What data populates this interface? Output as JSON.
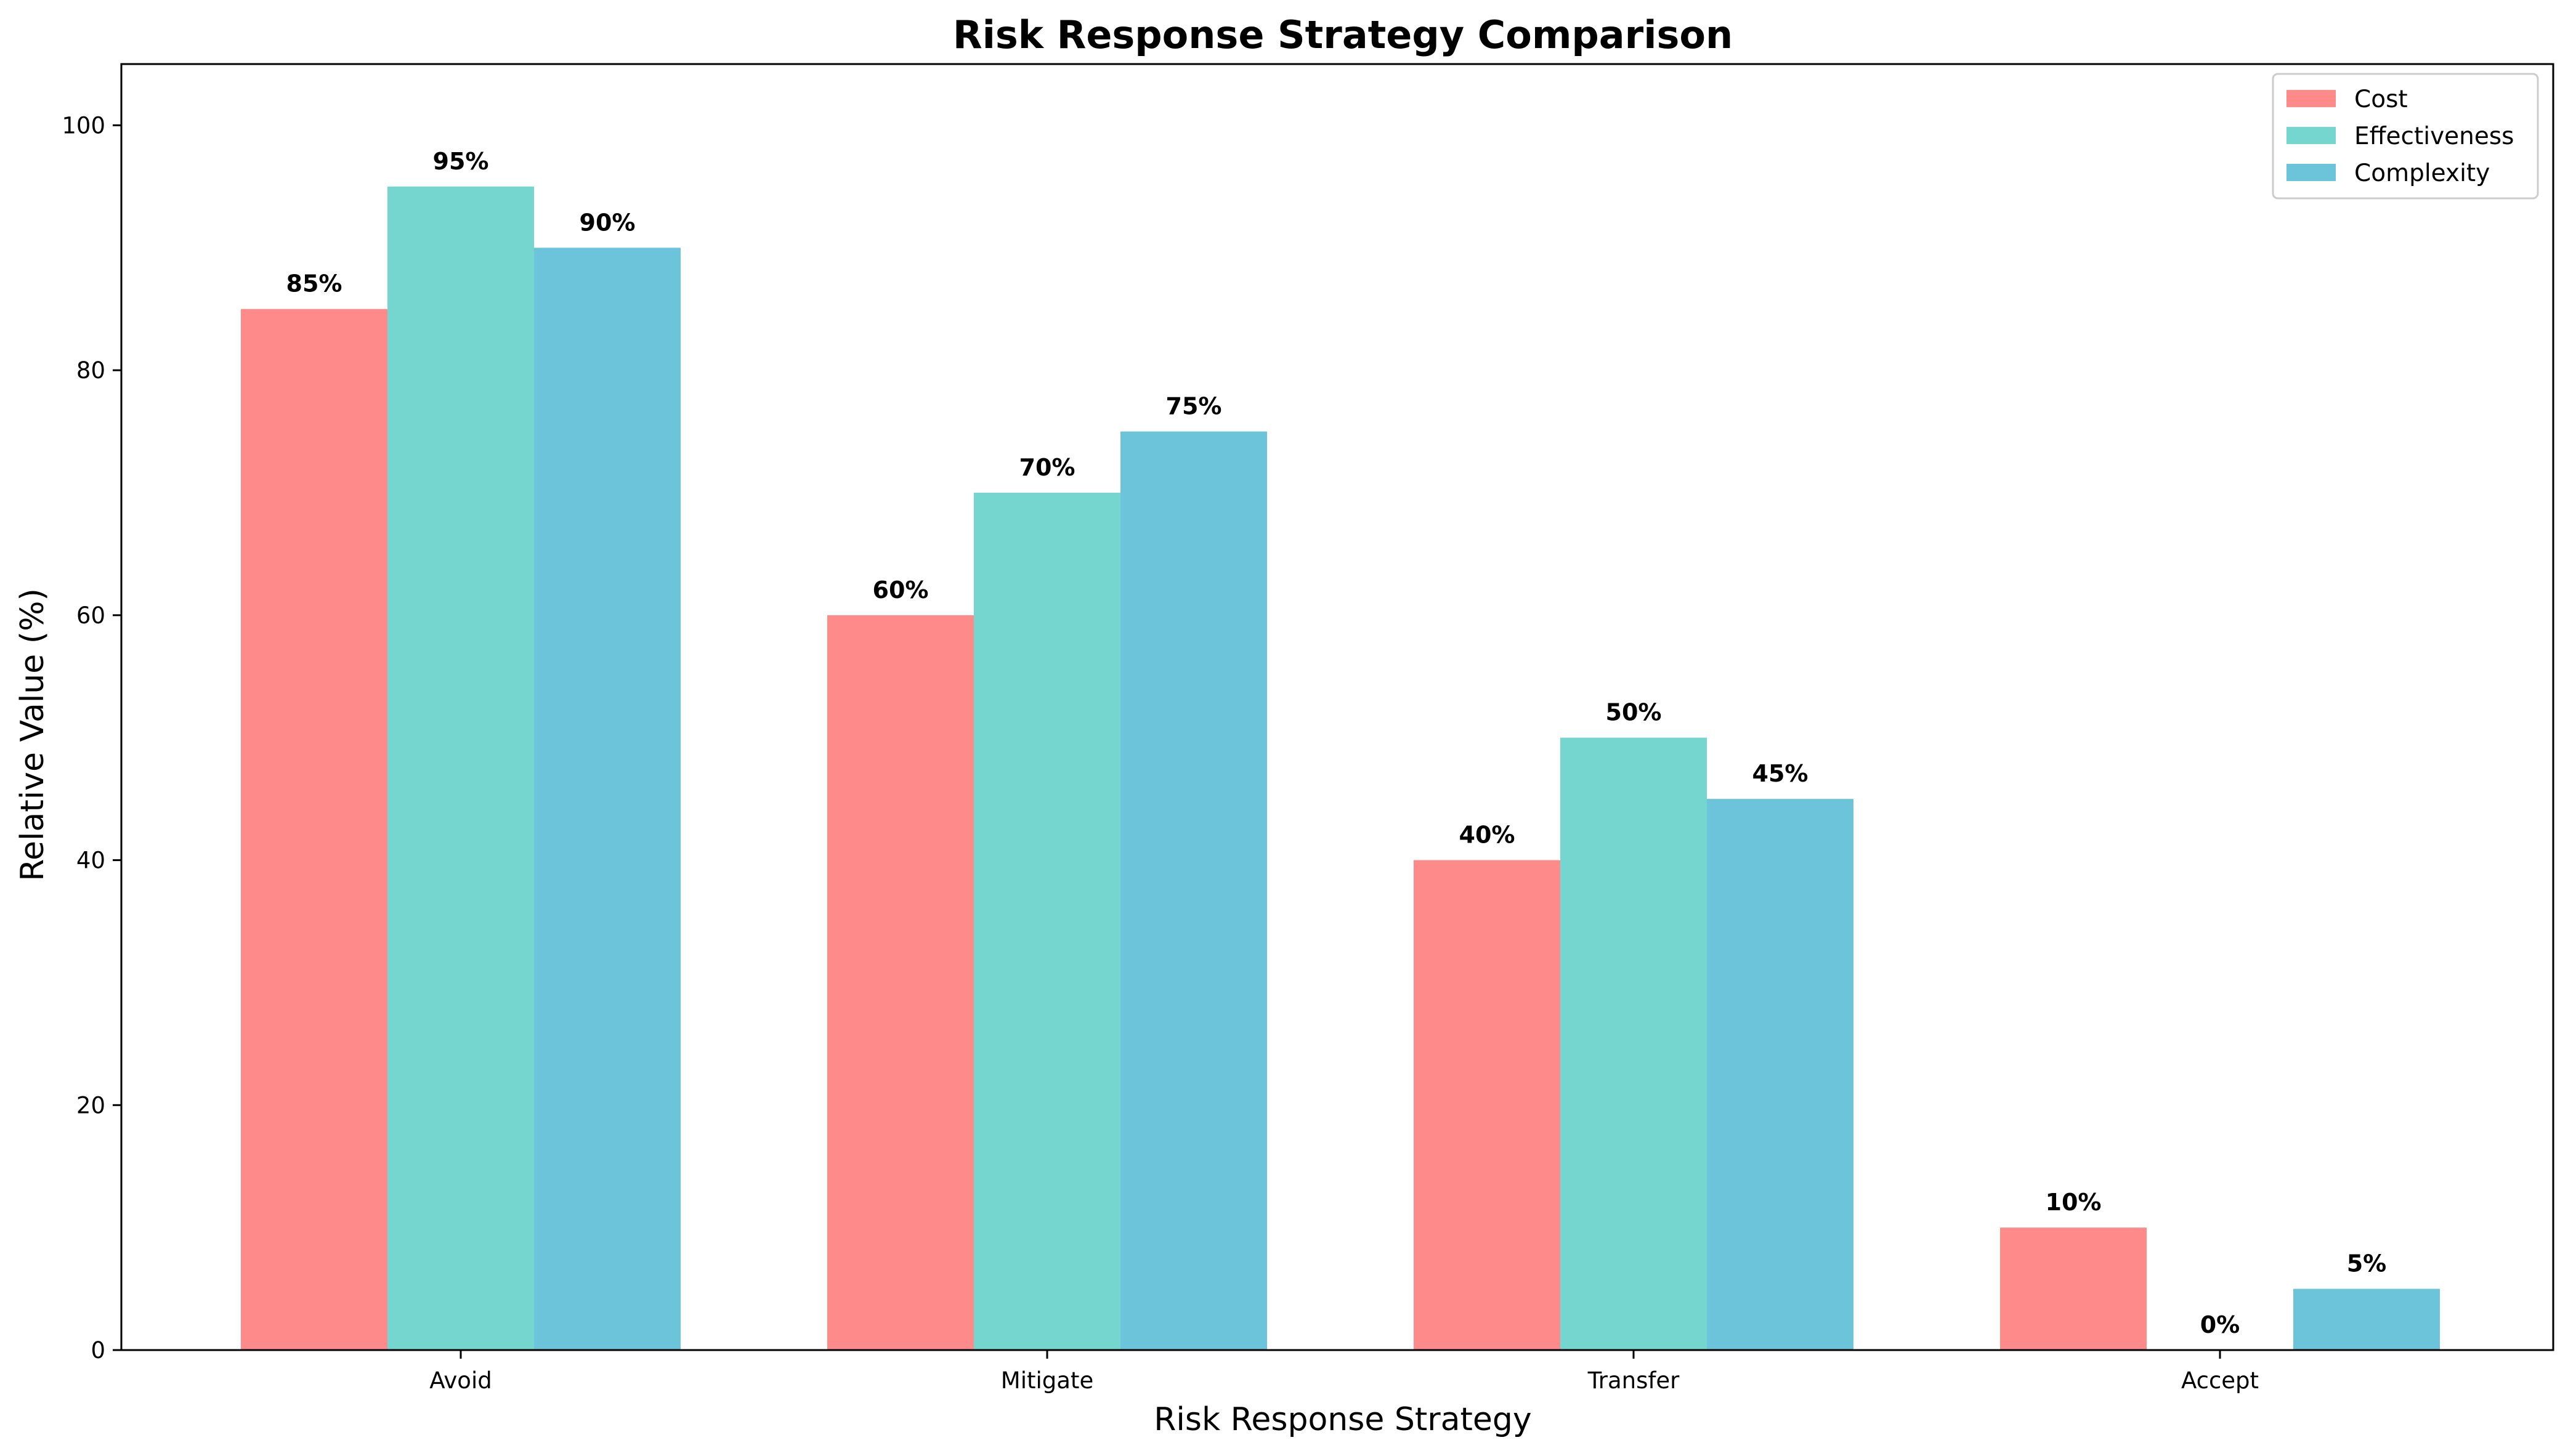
{
  "chart_data": {
    "type": "bar",
    "title": "Risk Response Strategy Comparison",
    "xlabel": "Risk Response Strategy",
    "ylabel": "Relative Value (%)",
    "categories": [
      "Avoid",
      "Mitigate",
      "Transfer",
      "Accept"
    ],
    "series": [
      {
        "name": "Cost",
        "color": "#ff8a8a",
        "values": [
          85,
          60,
          40,
          10
        ]
      },
      {
        "name": "Effectiveness",
        "color": "#74d6cf",
        "values": [
          95,
          70,
          50,
          0
        ]
      },
      {
        "name": "Complexity",
        "color": "#6bc4d9",
        "values": [
          90,
          75,
          45,
          5
        ]
      }
    ],
    "value_label_suffix": "%",
    "ylim": [
      0,
      105
    ],
    "yticks": [
      0,
      20,
      40,
      60,
      80,
      100
    ],
    "grid": false,
    "legend_position": "top-right"
  }
}
